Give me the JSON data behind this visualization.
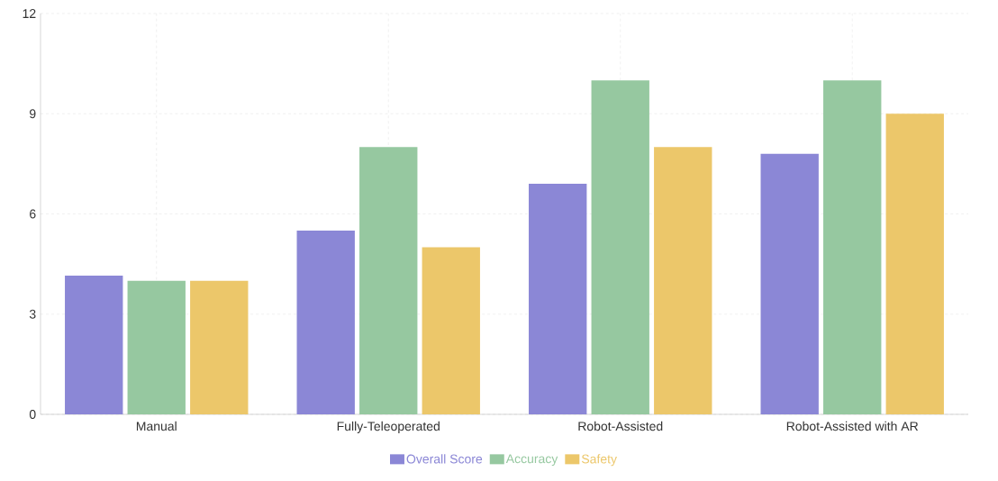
{
  "chart_data": {
    "type": "bar",
    "categories": [
      "Manual",
      "Fully-Teleoperated",
      "Robot-Assisted",
      "Robot-Assisted with AR"
    ],
    "series": [
      {
        "name": "Overall Score",
        "color": "#8b87d6",
        "values": [
          4.15,
          5.5,
          6.9,
          7.8
        ]
      },
      {
        "name": "Accuracy",
        "color": "#96c8a0",
        "values": [
          4,
          8,
          10,
          10
        ]
      },
      {
        "name": "Safety",
        "color": "#ecc76a",
        "values": [
          4,
          5,
          8,
          9
        ]
      }
    ],
    "ylim": [
      0,
      12
    ],
    "yticks": [
      0,
      3,
      6,
      9,
      12
    ],
    "grid": true,
    "legend": "bottom"
  }
}
